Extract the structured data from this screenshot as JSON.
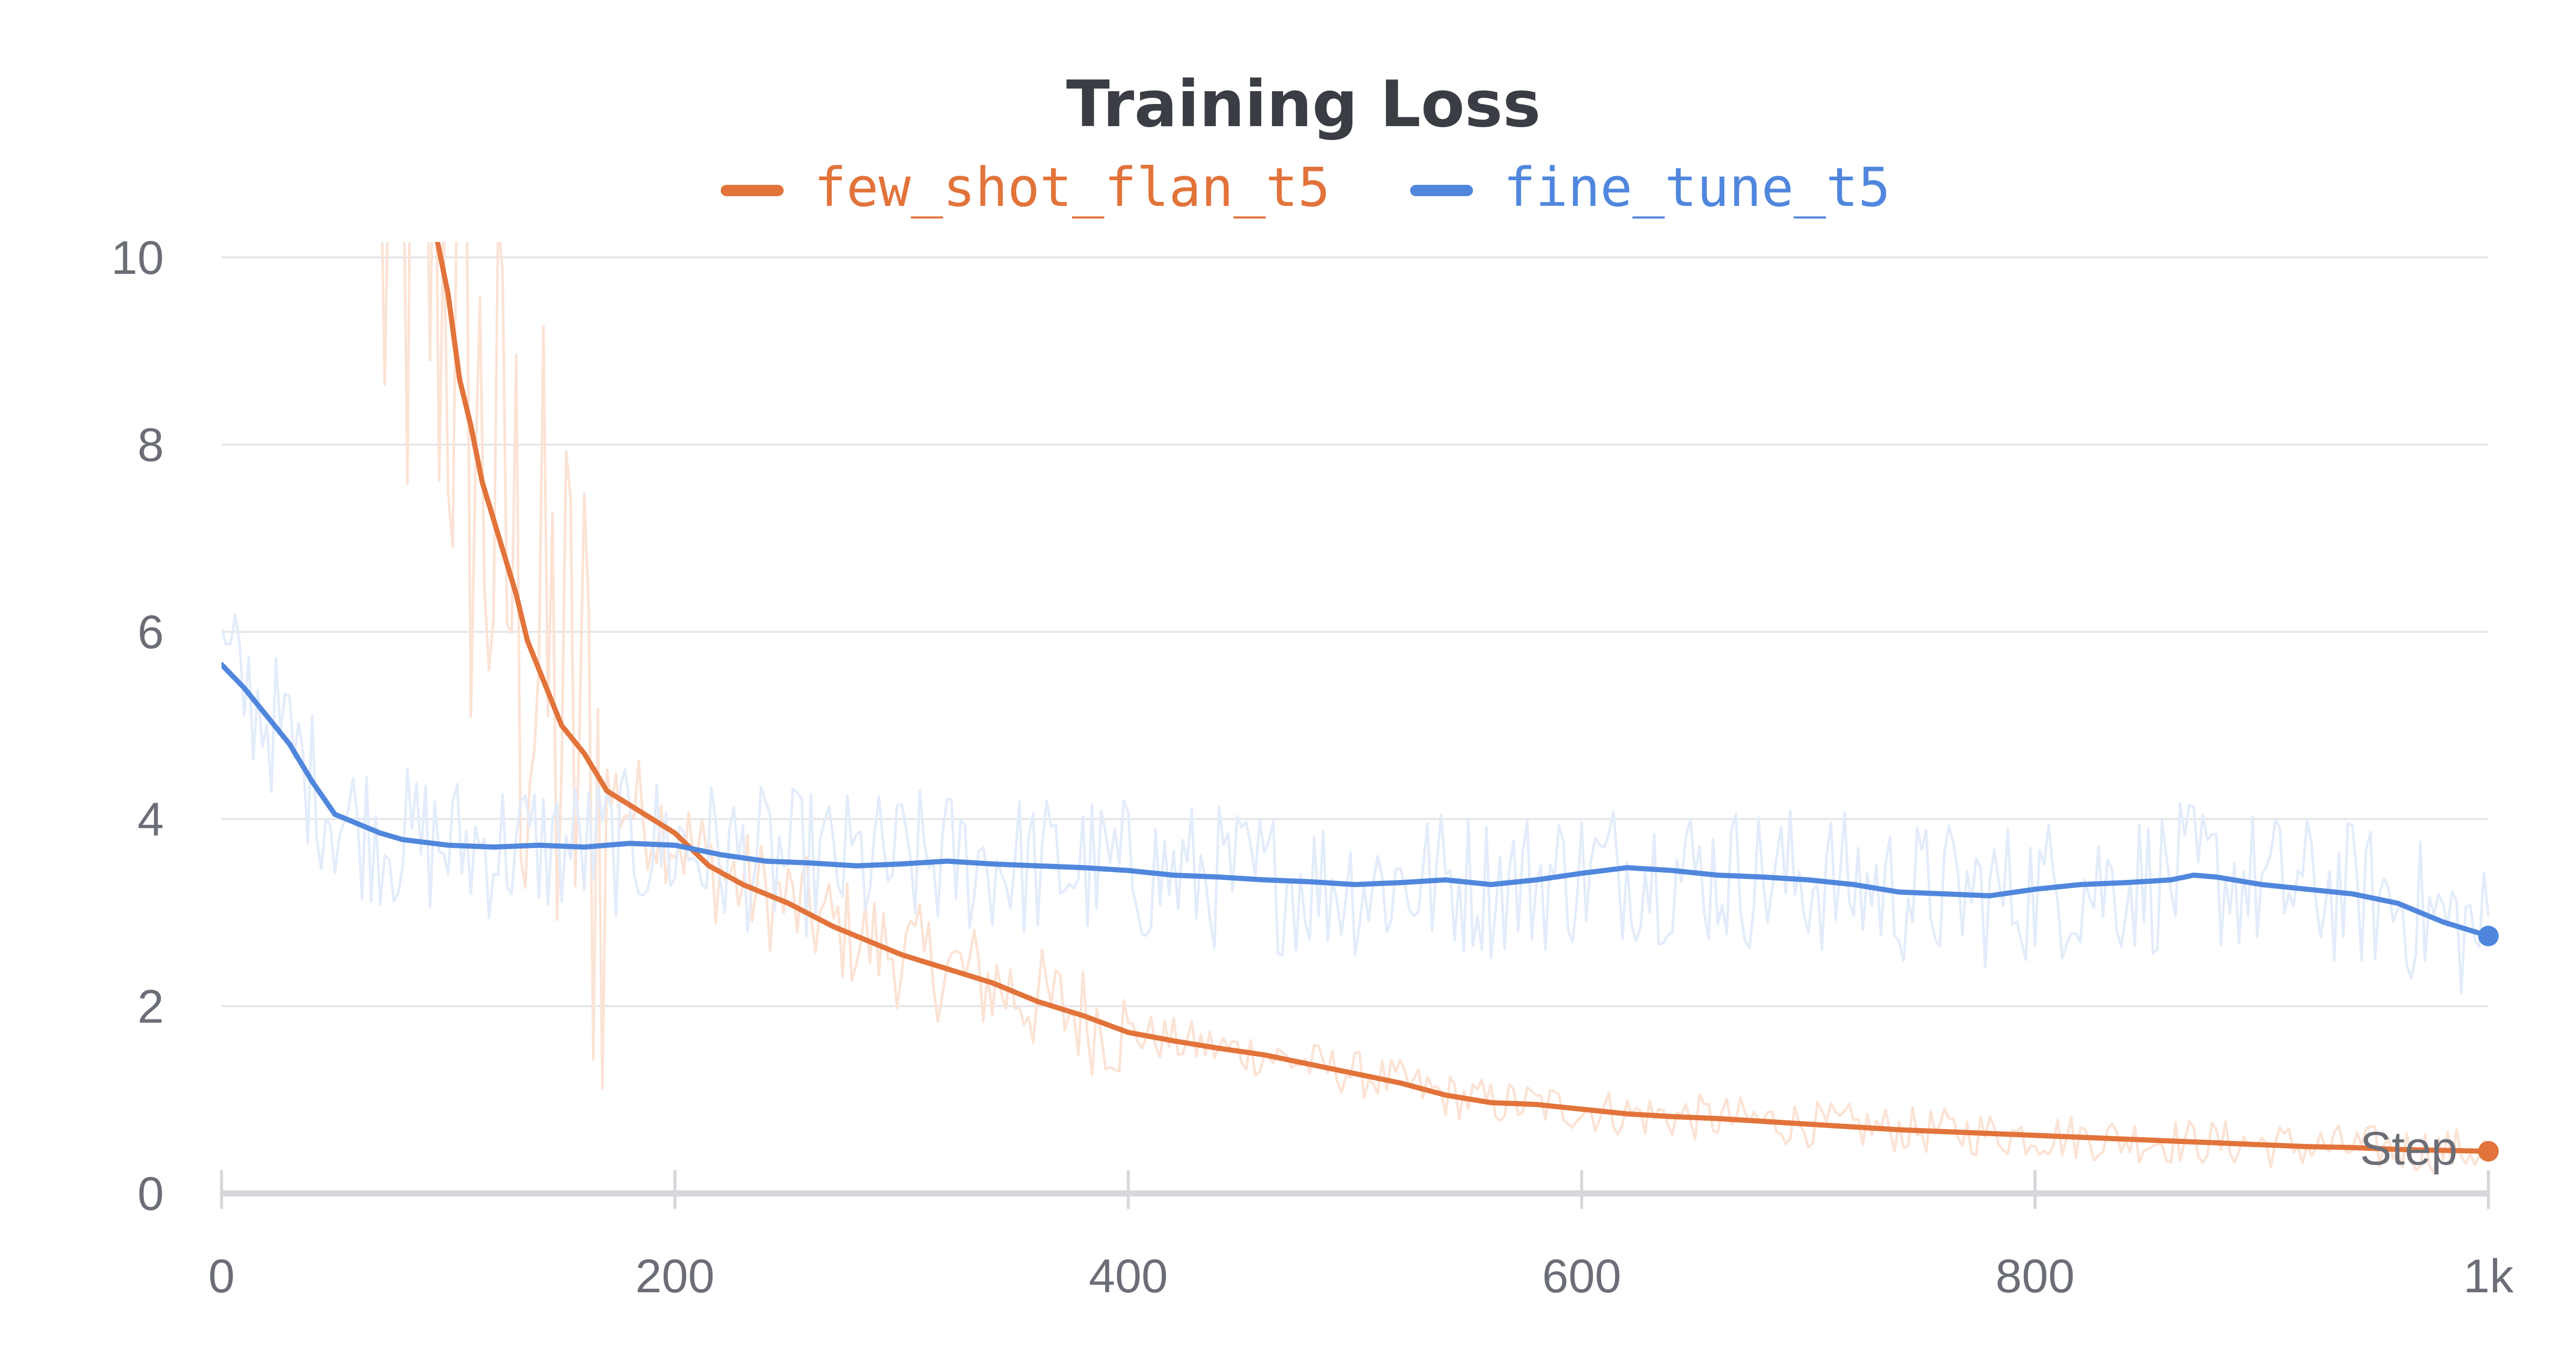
{
  "chart_data": {
    "type": "line",
    "title": "Training Loss",
    "xlabel": "Step",
    "ylabel": "",
    "xlim": [
      0,
      1000
    ],
    "ylim": [
      0,
      10
    ],
    "x_ticks": [
      "0",
      "200",
      "400",
      "600",
      "800",
      "1k"
    ],
    "y_ticks": [
      "0",
      "2",
      "4",
      "6",
      "8",
      "10"
    ],
    "grid": true,
    "legend_position": "top",
    "series": [
      {
        "name": "few_shot_flan_t5",
        "color": "#e2733a",
        "raw_color": "#fbe3d5",
        "x": [
          95,
          100,
          105,
          110,
          115,
          120,
          125,
          130,
          135,
          140,
          150,
          160,
          170,
          180,
          190,
          200,
          215,
          230,
          250,
          270,
          290,
          300,
          320,
          340,
          360,
          380,
          400,
          420,
          440,
          460,
          480,
          500,
          520,
          540,
          560,
          580,
          600,
          620,
          640,
          660,
          680,
          700,
          720,
          740,
          760,
          780,
          800,
          820,
          840,
          860,
          880,
          900,
          920,
          940,
          960,
          980,
          1000
        ],
        "y": [
          10.2,
          9.6,
          8.7,
          8.2,
          7.6,
          7.2,
          6.8,
          6.4,
          5.9,
          5.6,
          5.0,
          4.7,
          4.3,
          4.15,
          4.0,
          3.85,
          3.5,
          3.3,
          3.1,
          2.85,
          2.65,
          2.55,
          2.4,
          2.25,
          2.05,
          1.9,
          1.72,
          1.63,
          1.55,
          1.48,
          1.38,
          1.28,
          1.18,
          1.05,
          0.97,
          0.95,
          0.9,
          0.85,
          0.82,
          0.8,
          0.77,
          0.74,
          0.71,
          0.68,
          0.66,
          0.64,
          0.62,
          0.6,
          0.58,
          0.56,
          0.54,
          0.52,
          0.5,
          0.49,
          0.47,
          0.46,
          0.45
        ]
      },
      {
        "name": "fine_tune_t5",
        "color": "#5087dd",
        "raw_color": "#e3ecfa",
        "x": [
          0,
          10,
          20,
          30,
          40,
          50,
          55,
          60,
          70,
          80,
          100,
          120,
          140,
          160,
          180,
          200,
          220,
          240,
          260,
          280,
          300,
          320,
          340,
          360,
          380,
          400,
          420,
          440,
          460,
          480,
          500,
          520,
          540,
          560,
          580,
          600,
          620,
          640,
          660,
          680,
          700,
          720,
          740,
          760,
          780,
          800,
          820,
          840,
          860,
          870,
          880,
          900,
          920,
          940,
          960,
          980,
          1000
        ],
        "y": [
          5.65,
          5.4,
          5.1,
          4.8,
          4.4,
          4.05,
          4.0,
          3.95,
          3.85,
          3.78,
          3.72,
          3.7,
          3.72,
          3.7,
          3.74,
          3.72,
          3.62,
          3.55,
          3.53,
          3.5,
          3.52,
          3.55,
          3.52,
          3.5,
          3.48,
          3.45,
          3.4,
          3.38,
          3.35,
          3.33,
          3.3,
          3.32,
          3.35,
          3.3,
          3.35,
          3.42,
          3.48,
          3.45,
          3.4,
          3.38,
          3.35,
          3.3,
          3.22,
          3.2,
          3.18,
          3.25,
          3.3,
          3.32,
          3.35,
          3.4,
          3.38,
          3.3,
          3.25,
          3.2,
          3.1,
          2.9,
          2.75
        ]
      }
    ]
  }
}
